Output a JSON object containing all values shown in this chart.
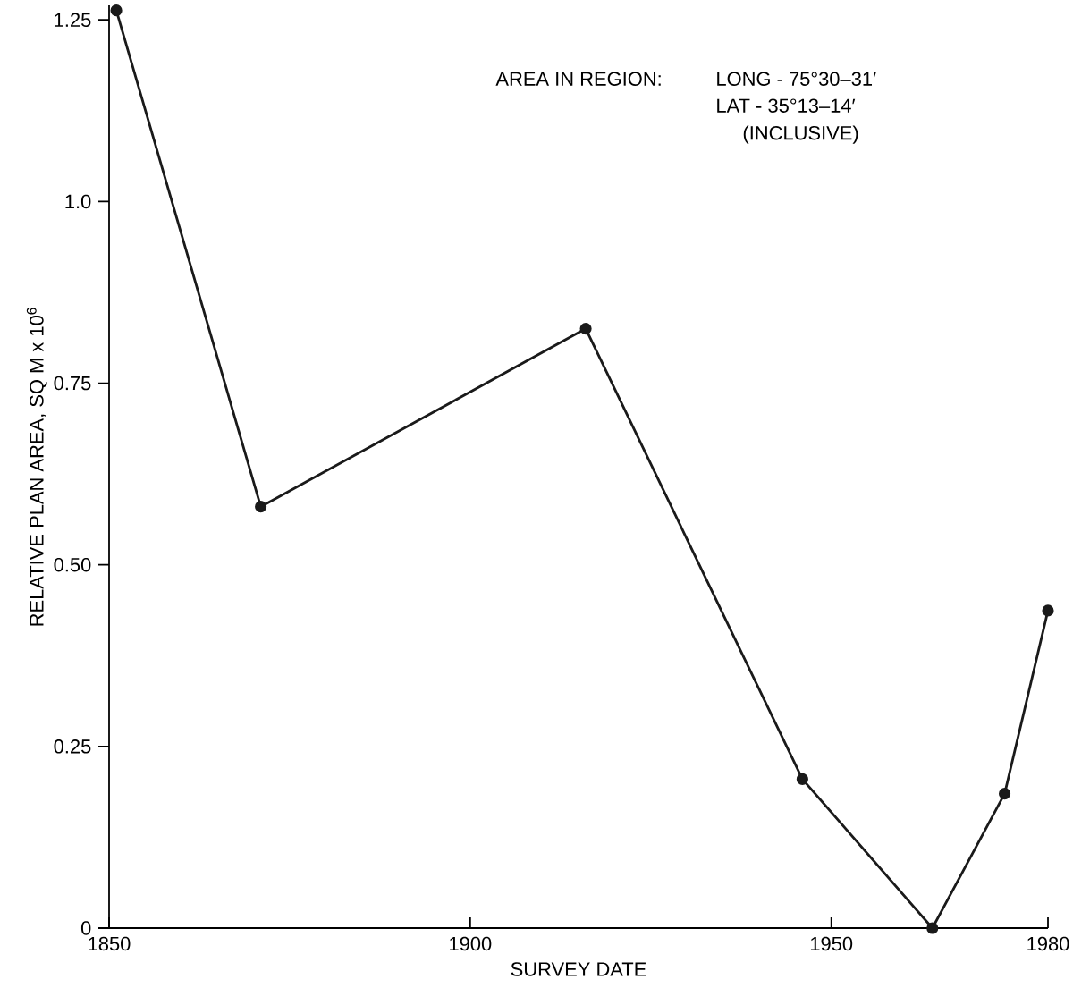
{
  "chart_data": {
    "type": "line",
    "xlabel": "SURVEY DATE",
    "ylabel": "RELATIVE PLAN AREA, SQ M x 10$^{6}$",
    "annotations": [
      "AREA IN REGION:",
      "LONG - 75°30–31′",
      "LAT - 35°13–14′",
      "(INCLUSIVE)"
    ],
    "x": [
      1851,
      1871,
      1916,
      1946,
      1964,
      1974,
      1980
    ],
    "series": [
      {
        "color": "#1a1a1a",
        "values": [
          1.263,
          0.58,
          0.825,
          0.205,
          0,
          0.185,
          0.437
        ]
      }
    ],
    "xlim": [
      1850,
      1980
    ],
    "ylim": [
      0,
      1.27
    ],
    "xticks": [
      1850,
      1900,
      1950,
      1980
    ],
    "yticks": [
      0,
      0.25,
      {
        "value": 0.5,
        "label": "0.50"
      },
      0.75,
      {
        "value": 1,
        "label": "1.0"
      },
      1.25
    ],
    "marker": "circle",
    "line_style": "solid",
    "grid": false
  }
}
